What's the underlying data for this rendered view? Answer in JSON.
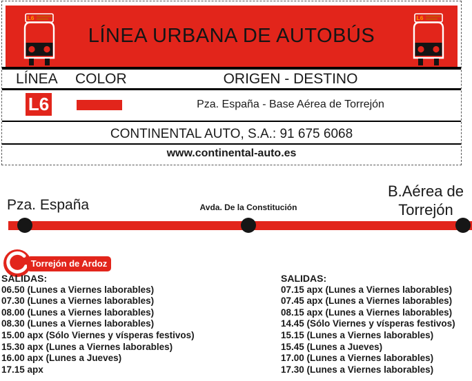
{
  "colors": {
    "red": "#e2251b",
    "text": "#1a1a1a",
    "bus_sign_text": "#ff9900"
  },
  "banner": {
    "title": "LÍNEA URBANA DE AUTOBÚS",
    "bus_sign_label": "L6"
  },
  "info_table": {
    "header": {
      "linea": "LÍNEA",
      "color": "COLOR",
      "origen_destino": "ORIGEN - DESTINO"
    },
    "line": {
      "code": "L6",
      "route": "Pza. España - Base Aérea de Torrejón"
    },
    "operator": "CONTINENTAL AUTO, S.A.: 91 675 6068",
    "website": "www.continental-auto.es"
  },
  "route_map": {
    "stops": [
      {
        "label": "Pza. España"
      },
      {
        "label": "Avda. De la Constitución"
      },
      {
        "label": "B.Aérea de Torrejón"
      }
    ]
  },
  "municipality": {
    "name": "Torrejón de Ardoz"
  },
  "departures": {
    "outbound": {
      "title": "SALIDAS:",
      "times": [
        "06.50 (Lunes a Viernes laborables)",
        "07.30 (Lunes a Viernes laborables)",
        "08.00 (Lunes a Viernes laborables)",
        "08.30 (Lunes a Viernes laborables)",
        "15.00 apx (Sólo Viernes y vísperas festivos)",
        "15.30 apx (Lunes a Viernes laborables)",
        "16.00 apx (Lunes a Jueves)",
        "17.15 apx"
      ]
    },
    "return": {
      "title": "SALIDAS:",
      "times": [
        "07.15 apx (Lunes a Viernes laborables)",
        "07.45 apx (Lunes a Viernes laborables)",
        "08.15 apx (Lunes a Viernes laborables)",
        "14.45 (Sólo Viernes y vísperas festivos)",
        "15.15 (Lunes a Viernes laborables)",
        "15.45 (Lunes a Jueves)",
        "17.00 (Lunes a Viernes laborables)",
        "17.30 (Lunes a Viernes laborables)"
      ]
    }
  }
}
